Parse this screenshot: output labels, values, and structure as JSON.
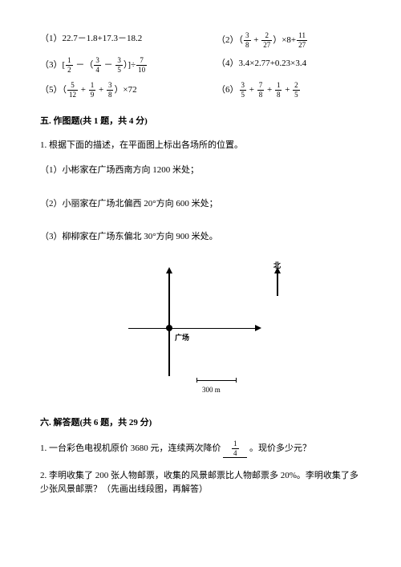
{
  "problems": {
    "p1_num": "（1）",
    "p1": "22.7－1.8+17.3－18.2",
    "p2_num": "（2）",
    "p2_open": "（",
    "p2_plus": " + ",
    "p2_close": "）×8+",
    "p2_f1n": "3",
    "p2_f1d": "8",
    "p2_f2n": "2",
    "p2_f2d": "27",
    "p2_f3n": "11",
    "p2_f3d": "27",
    "p3_num": "（3）",
    "p3_open": "[",
    "p3_minus1": " －（",
    "p3_minus2": " － ",
    "p3_close": "）]÷",
    "p3_f1n": "1",
    "p3_f1d": "2",
    "p3_f2n": "3",
    "p3_f2d": "4",
    "p3_f3n": "3",
    "p3_f3d": "5",
    "p3_f4n": "7",
    "p3_f4d": "10",
    "p4_num": "（4）",
    "p4": "3.4×2.77+0.23×3.4",
    "p5_num": "（5）",
    "p5_open": "（",
    "p5_plus1": " + ",
    "p5_plus2": " + ",
    "p5_close": "）×72",
    "p5_f1n": "5",
    "p5_f1d": "12",
    "p5_f2n": "1",
    "p5_f2d": "9",
    "p5_f3n": "3",
    "p5_f3d": "8",
    "p6_num": "（6）",
    "p6_plus1": " + ",
    "p6_plus2": " + ",
    "p6_plus3": " + ",
    "p6_f1n": "3",
    "p6_f1d": "5",
    "p6_f2n": "7",
    "p6_f2d": "8",
    "p6_f3n": "1",
    "p6_f3d": "8",
    "p6_f4n": "2",
    "p6_f4d": "5"
  },
  "section5": {
    "title": "五. 作图题(共 1 题，共 4 分)",
    "q1": "1. 根据下面的描述，在平面图上标出各场所的位置。",
    "sq1": "（1）小彬家在广场西南方向 1200 米处；",
    "sq2": "（2）小丽家在广场北偏西 20°方向 600 米处；",
    "sq3": "（3）柳柳家在广场东偏北 30°方向 900 米处。"
  },
  "diagram": {
    "north": "北",
    "plaza": "广场",
    "scale": "300 m"
  },
  "section6": {
    "title": "六. 解答题(共 6 题，共 29 分)",
    "q1_a": "1. 一台彩色电视机原价 3680 元，连续两次降价 ",
    "q1_fn": "1",
    "q1_fd": "4",
    "q1_b": " 。现价多少元？",
    "q2": "2. 李明收集了 200 张人物邮票，收集的风景邮票比人物邮票多 20%。李明收集了多少张风景邮票？（先画出线段图，再解答）"
  }
}
